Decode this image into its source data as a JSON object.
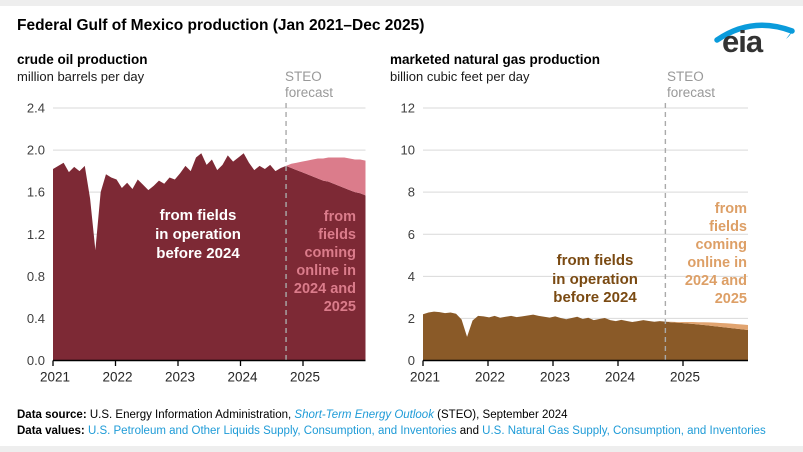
{
  "header": {
    "title": "Federal Gulf of Mexico production (Jan 2021–Dec 2025)",
    "logo_text": "eia"
  },
  "colors": {
    "oil_history": "#7D2935",
    "oil_new": "#DB7C8B",
    "gas_history": "#8A5A28",
    "gas_new": "#E1A470",
    "gridline": "#D9D9D9",
    "forecast_line": "#AAAAAA",
    "link_blue": "#1E9BD7",
    "logo_swoosh": "#0A9BDB"
  },
  "charts": {
    "oil": {
      "title": "crude oil production",
      "unit": "million barrels per day",
      "forecast_label": "STEO\nforecast",
      "hist_annotation": "from fields\nin operation\nbefore 2024",
      "new_annotation": "from\nfields\ncoming\nonline in\n2024 and\n2025"
    },
    "gas": {
      "title": "marketed natural gas production",
      "unit": "billion cubic feet per day",
      "forecast_label": "STEO\nforecast",
      "hist_annotation": "from fields\nin operation\nbefore 2024",
      "new_annotation": "from\nfields\ncoming\nonline in\n2024 and\n2025"
    }
  },
  "footer": {
    "line1": {
      "label": "Data source: ",
      "text": "U.S. Energy Information Administration, ",
      "link": "Short-Term Energy Outlook",
      "suffix": " (STEO), September 2024"
    },
    "line2": {
      "label": "Data values: ",
      "link1": "U.S. Petroleum and Other Liquids Supply, Consumption, and Inventories",
      "mid": " and ",
      "link2": "U.S. Natural Gas Supply, Consumption, and Inventories"
    }
  },
  "chart_data": [
    {
      "type": "area",
      "stacked": true,
      "title": "crude oil production",
      "ylabel": "million barrels per day",
      "x_start": "2021-01",
      "x_end": "2025-12",
      "xtick_labels": [
        "2021",
        "2022",
        "2023",
        "2024",
        "2025"
      ],
      "ytick_labels": [
        "0.0",
        "0.4",
        "0.8",
        "1.2",
        "1.6",
        "2.0",
        "2.4"
      ],
      "ylim": [
        0,
        2.4
      ],
      "grid": true,
      "forecast_start": "2024-09",
      "forecast_month_index": 44,
      "series": [
        {
          "name": "from fields in operation before 2024",
          "color": "#7D2935",
          "values": [
            1.82,
            1.85,
            1.88,
            1.79,
            1.84,
            1.8,
            1.85,
            1.54,
            1.05,
            1.6,
            1.77,
            1.74,
            1.72,
            1.64,
            1.69,
            1.63,
            1.72,
            1.67,
            1.62,
            1.66,
            1.71,
            1.68,
            1.74,
            1.72,
            1.78,
            1.85,
            1.8,
            1.93,
            1.97,
            1.86,
            1.91,
            1.81,
            1.86,
            1.95,
            1.89,
            1.93,
            1.97,
            1.88,
            1.81,
            1.85,
            1.82,
            1.86,
            1.8,
            1.83,
            1.85,
            1.83,
            1.81,
            1.79,
            1.77,
            1.75,
            1.73,
            1.71,
            1.7,
            1.68,
            1.66,
            1.64,
            1.62,
            1.6,
            1.59,
            1.57
          ]
        },
        {
          "name": "from fields coming online in 2024 and 2025",
          "color": "#DB7C8B",
          "values": [
            0,
            0,
            0,
            0,
            0,
            0,
            0,
            0,
            0,
            0,
            0,
            0,
            0,
            0,
            0,
            0,
            0,
            0,
            0,
            0,
            0,
            0,
            0,
            0,
            0,
            0,
            0,
            0,
            0,
            0,
            0,
            0,
            0,
            0,
            0,
            0,
            0,
            0,
            0,
            0,
            0,
            0,
            0,
            0,
            0,
            0.04,
            0.07,
            0.1,
            0.13,
            0.16,
            0.19,
            0.21,
            0.23,
            0.25,
            0.27,
            0.29,
            0.3,
            0.31,
            0.32,
            0.33
          ]
        }
      ]
    },
    {
      "type": "area",
      "stacked": true,
      "title": "marketed natural gas production",
      "ylabel": "billion cubic feet per day",
      "x_start": "2021-01",
      "x_end": "2025-12",
      "xtick_labels": [
        "2021",
        "2022",
        "2023",
        "2024",
        "2025"
      ],
      "ytick_labels": [
        "0",
        "2",
        "4",
        "6",
        "8",
        "10",
        "12"
      ],
      "ylim": [
        0,
        12
      ],
      "grid": true,
      "forecast_start": "2024-09",
      "forecast_month_index": 44,
      "series": [
        {
          "name": "from fields in operation before 2024",
          "color": "#8A5A28",
          "values": [
            2.2,
            2.28,
            2.32,
            2.3,
            2.25,
            2.28,
            2.22,
            1.95,
            1.12,
            1.9,
            2.12,
            2.1,
            2.05,
            2.12,
            2.03,
            2.08,
            2.12,
            2.06,
            2.1,
            2.14,
            2.18,
            2.12,
            2.08,
            2.04,
            2.1,
            2.02,
            1.96,
            2.02,
            2.08,
            1.97,
            2.03,
            1.92,
            1.97,
            2.02,
            1.92,
            1.87,
            1.93,
            1.88,
            1.83,
            1.87,
            1.92,
            1.88,
            1.84,
            1.87,
            1.85,
            1.82,
            1.8,
            1.78,
            1.76,
            1.74,
            1.71,
            1.69,
            1.66,
            1.63,
            1.6,
            1.57,
            1.54,
            1.51,
            1.48,
            1.45
          ]
        },
        {
          "name": "from fields coming online in 2024 and 2025",
          "color": "#E1A470",
          "values": [
            0,
            0,
            0,
            0,
            0,
            0,
            0,
            0,
            0,
            0,
            0,
            0,
            0,
            0,
            0,
            0,
            0,
            0,
            0,
            0,
            0,
            0,
            0,
            0,
            0,
            0,
            0,
            0,
            0,
            0,
            0,
            0,
            0,
            0,
            0,
            0,
            0,
            0,
            0,
            0,
            0,
            0,
            0,
            0,
            0,
            0.02,
            0.03,
            0.05,
            0.07,
            0.09,
            0.11,
            0.13,
            0.15,
            0.17,
            0.18,
            0.2,
            0.21,
            0.22,
            0.23,
            0.24
          ]
        }
      ]
    }
  ]
}
